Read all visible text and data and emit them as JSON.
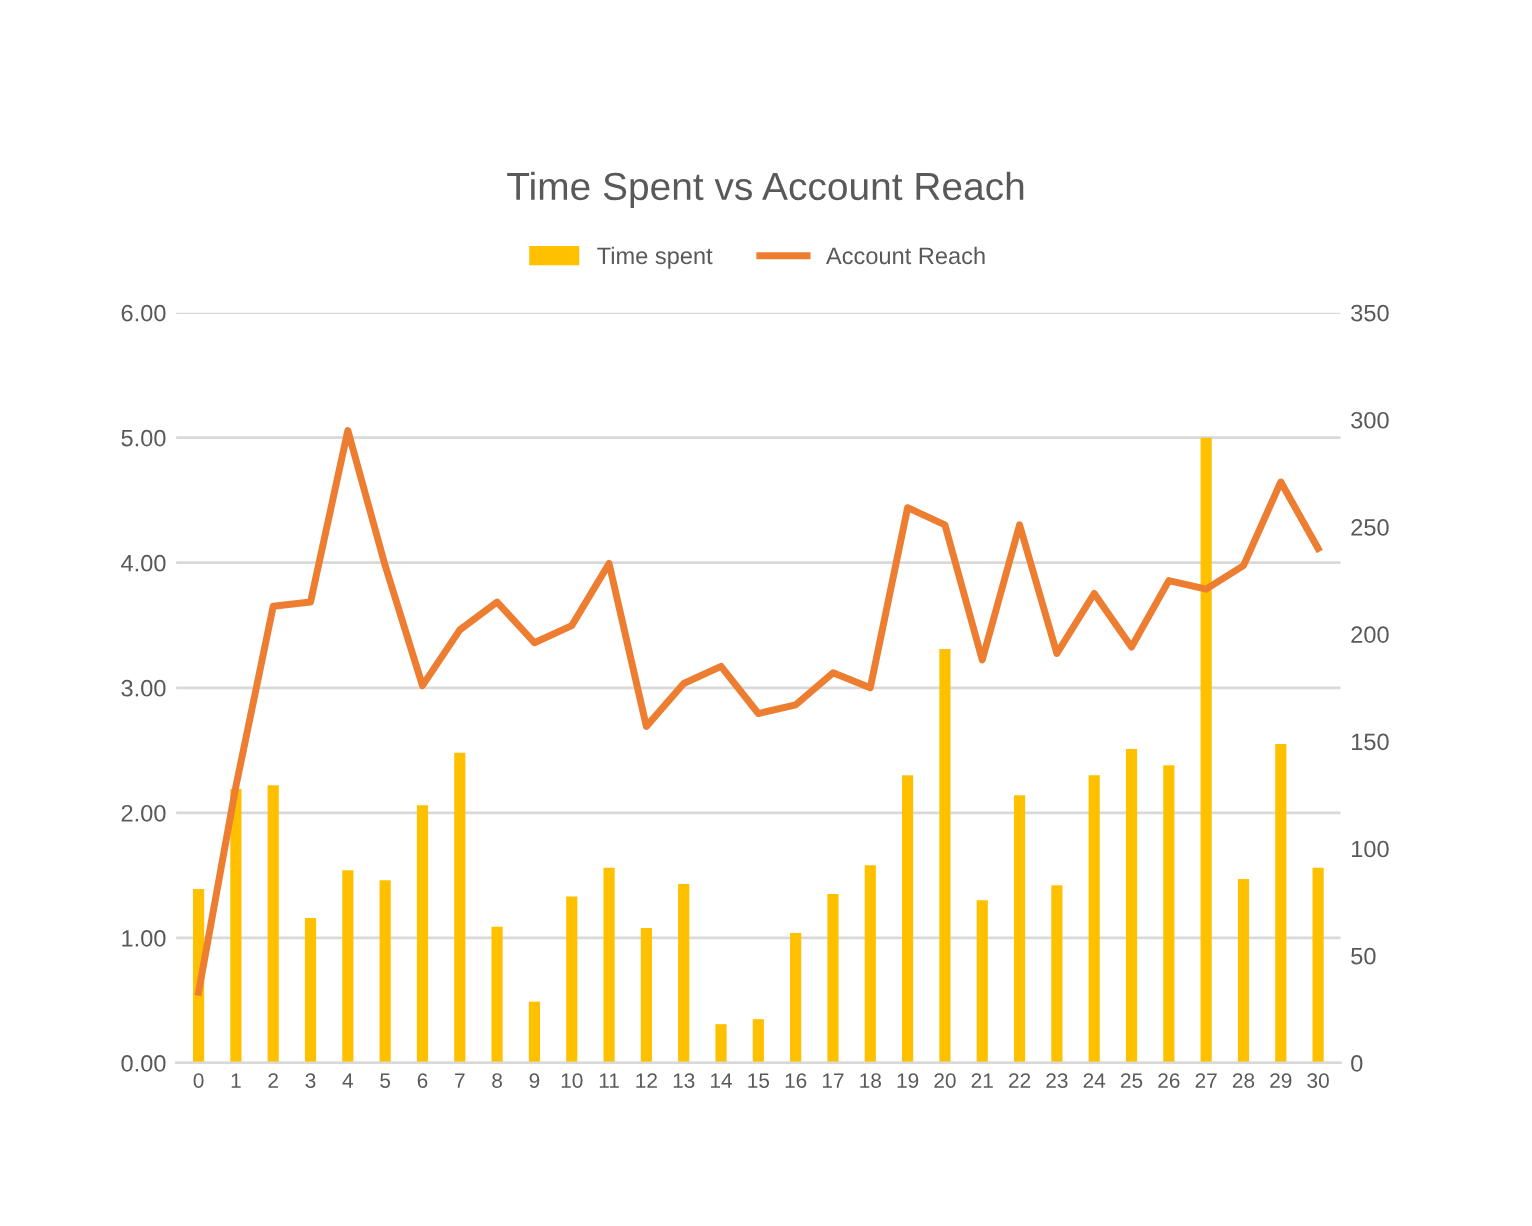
{
  "chart_data": {
    "type": "bar",
    "title": "Time Spent vs Account Reach",
    "categories": [
      "0",
      "1",
      "2",
      "3",
      "4",
      "5",
      "6",
      "7",
      "8",
      "9",
      "10",
      "11",
      "12",
      "13",
      "14",
      "15",
      "16",
      "17",
      "18",
      "19",
      "20",
      "21",
      "22",
      "23",
      "24",
      "25",
      "26",
      "27",
      "28",
      "29",
      "30"
    ],
    "series": [
      {
        "name": "Time spent",
        "color": "#ffc000",
        "values": [
          1.39,
          2.19,
          2.22,
          1.16,
          1.54,
          1.46,
          2.06,
          2.48,
          1.09,
          0.49,
          1.33,
          1.56,
          1.08,
          1.43,
          0.31,
          0.35,
          1.04,
          1.35,
          1.58,
          2.3,
          3.31,
          1.3,
          2.14,
          1.42,
          2.3,
          2.51,
          2.38,
          5.0,
          1.47,
          2.55,
          1.56
        ]
      },
      {
        "name": "Account Reach",
        "type": "line",
        "axis": "y2",
        "color": "#ed7d31",
        "values": [
          33,
          129,
          213,
          215,
          295,
          232,
          176,
          202,
          215,
          196,
          204,
          233,
          157,
          177,
          185,
          163,
          167,
          182,
          175,
          259,
          251,
          188,
          251,
          191,
          219,
          194,
          225,
          221,
          232,
          271,
          240
        ]
      }
    ],
    "ylim": [
      0,
      6
    ],
    "yticks": [
      {
        "value": 0,
        "label": "0.00"
      },
      {
        "value": 1,
        "label": "1.00"
      },
      {
        "value": 2,
        "label": "2.00"
      },
      {
        "value": 3,
        "label": "3.00"
      },
      {
        "value": 4,
        "label": "4.00"
      },
      {
        "value": 5,
        "label": "5.00"
      },
      {
        "value": 6,
        "label": "6.00"
      }
    ],
    "y2lim": [
      0,
      350
    ],
    "y2ticks": [
      0,
      50,
      100,
      150,
      200,
      250,
      300,
      350
    ],
    "grid": "y",
    "legend": "top",
    "marker": "none",
    "line_style": "solid"
  }
}
